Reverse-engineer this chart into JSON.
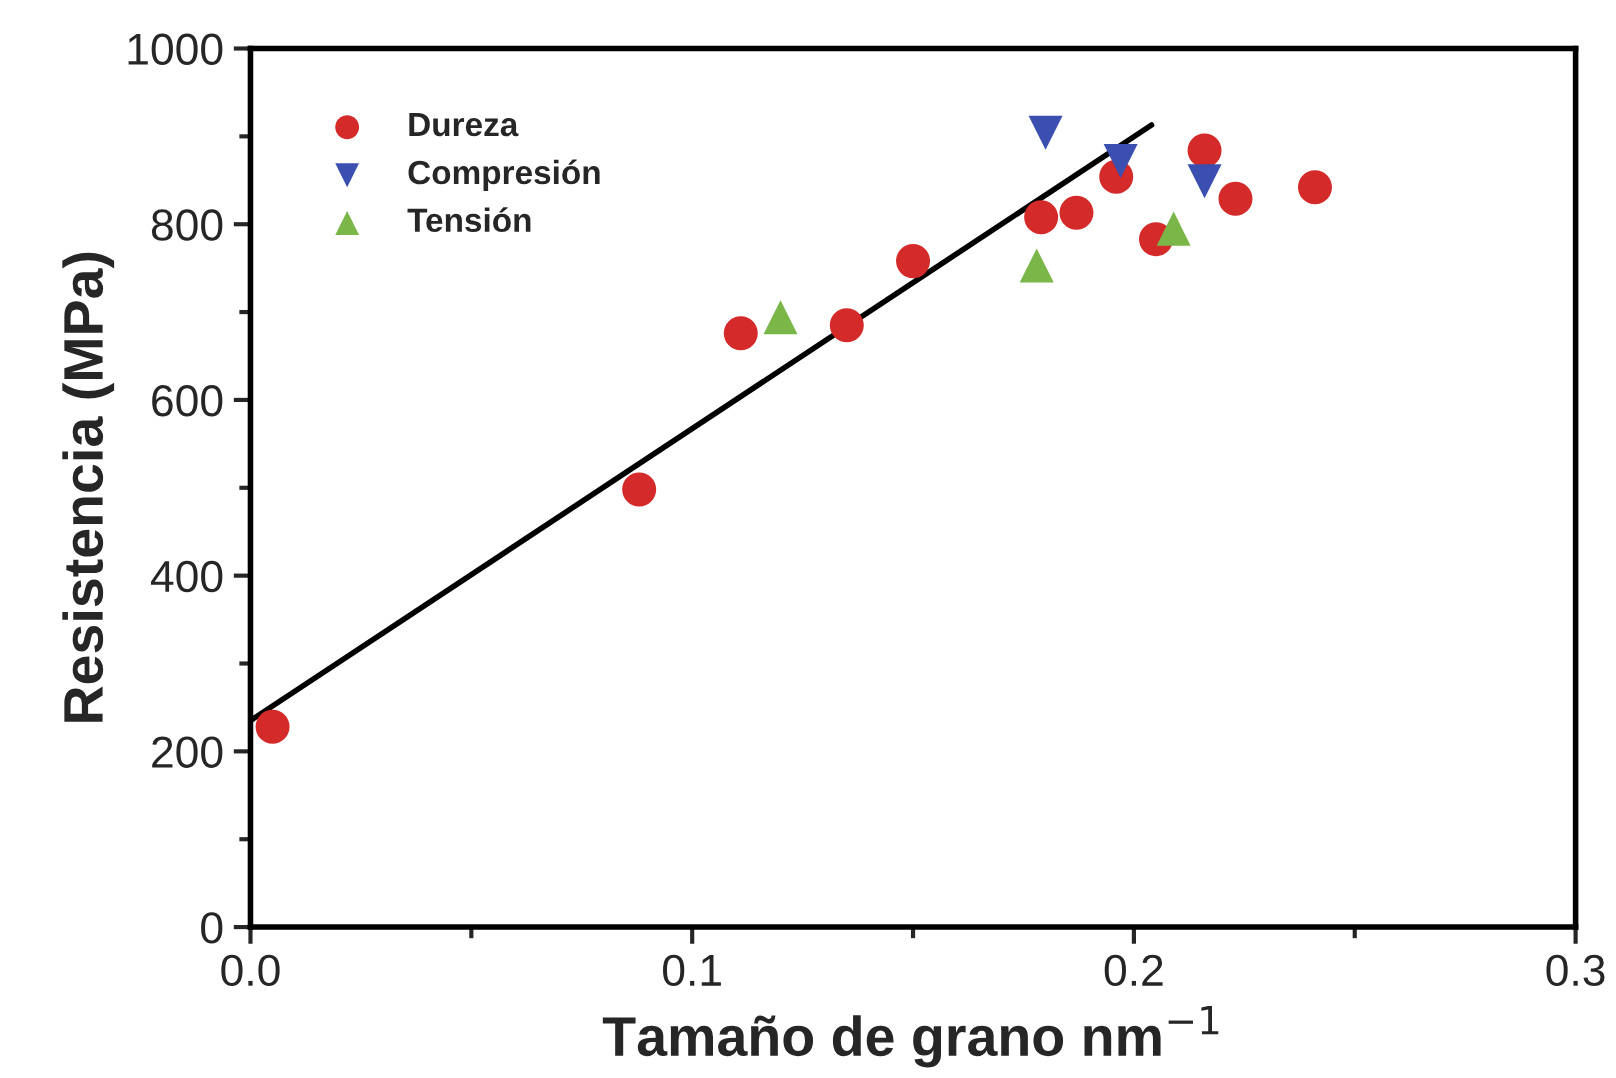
{
  "chart_data": {
    "type": "scatter",
    "xlabel": "Tamaño de grano nm$^{−1}$",
    "ylabel": "Resistencia (MPa)",
    "xlim": [
      0,
      0.3
    ],
    "xticks": [
      {
        "value": 0,
        "label": "0.0"
      },
      0.1,
      0.2,
      0.3
    ],
    "ylim": [
      0,
      1000
    ],
    "yticks": [
      0,
      200,
      400,
      600,
      800,
      1000
    ],
    "grid": false,
    "legend": "top left",
    "series": [
      {
        "name": "Dureza",
        "color": "#d42a2a",
        "marker": "circle",
        "x": [
          0.005,
          0.088,
          0.111,
          0.135,
          0.15,
          0.179,
          0.187,
          0.196,
          0.205,
          0.216,
          0.223,
          0.241
        ],
        "values": [
          228,
          498,
          676,
          685,
          758,
          808,
          813,
          854,
          783,
          884,
          829,
          842
        ]
      },
      {
        "name": "Compresión",
        "color": "#3a4fb0",
        "marker": "triangle_down",
        "x": [
          0.18,
          0.197,
          0.216
        ],
        "values": [
          904,
          872,
          849
        ]
      },
      {
        "name": "Tensión",
        "color": "#7ab648",
        "marker": "triangle",
        "x": [
          0.12,
          0.178,
          0.209
        ],
        "values": [
          694,
          753,
          795
        ]
      },
      {
        "type": "line",
        "color": "#000000",
        "marker": "none",
        "x": [
          0,
          0.204
        ],
        "values": [
          235,
          913
        ]
      }
    ]
  }
}
